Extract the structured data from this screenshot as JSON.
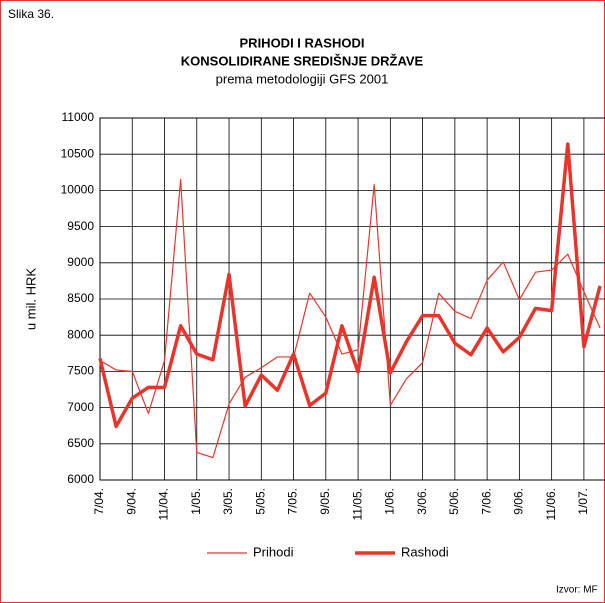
{
  "chart_data": {
    "type": "line",
    "label": "Slika 36.",
    "title": [
      "PRIHODI I RASHODI",
      "KONSOLIDIRANE SREDIŠNJE DRŽAVE"
    ],
    "subtitle": "prema metodologiji GFS 2001",
    "ylabel": "u mil. HRK",
    "source": "Izvor: MF",
    "categories": [
      "7/04.",
      null,
      "9/04.",
      null,
      "11/04.",
      null,
      "1/05.",
      null,
      "3/05.",
      null,
      "5/05.",
      null,
      "7/05.",
      null,
      "9/05.",
      null,
      "11/05.",
      null,
      "1/06.",
      null,
      "3/06.",
      null,
      "5/06.",
      null,
      "7/06.",
      null,
      "9/06.",
      null,
      "11/06.",
      null,
      "1/07.",
      null
    ],
    "series": [
      {
        "name": "Prihodi",
        "color": "#e8352b",
        "width": 1.2,
        "values": [
          7650,
          7520,
          7500,
          6920,
          7650,
          10150,
          6380,
          6310,
          7050,
          7420,
          7550,
          7700,
          7700,
          8580,
          8250,
          7740,
          7800,
          10080,
          7030,
          7400,
          7620,
          8580,
          8330,
          8230,
          8760,
          9010,
          8490,
          8870,
          8900,
          9120,
          8600,
          8100
        ]
      },
      {
        "name": "Rashodi",
        "color": "#e8352b",
        "width": 3.5,
        "values": [
          7680,
          6740,
          7130,
          7280,
          7280,
          8130,
          7740,
          7660,
          8840,
          7020,
          7450,
          7240,
          7740,
          7030,
          7200,
          8130,
          7490,
          8800,
          7480,
          7910,
          8270,
          8270,
          7890,
          7730,
          8100,
          7770,
          7970,
          8370,
          8340,
          10640,
          7840,
          8680
        ]
      }
    ],
    "ylim": [
      6000,
      11000
    ],
    "yticks": [
      6000,
      6500,
      7000,
      7500,
      8000,
      8500,
      9000,
      9500,
      10000,
      10500,
      11000
    ],
    "grid": true
  }
}
